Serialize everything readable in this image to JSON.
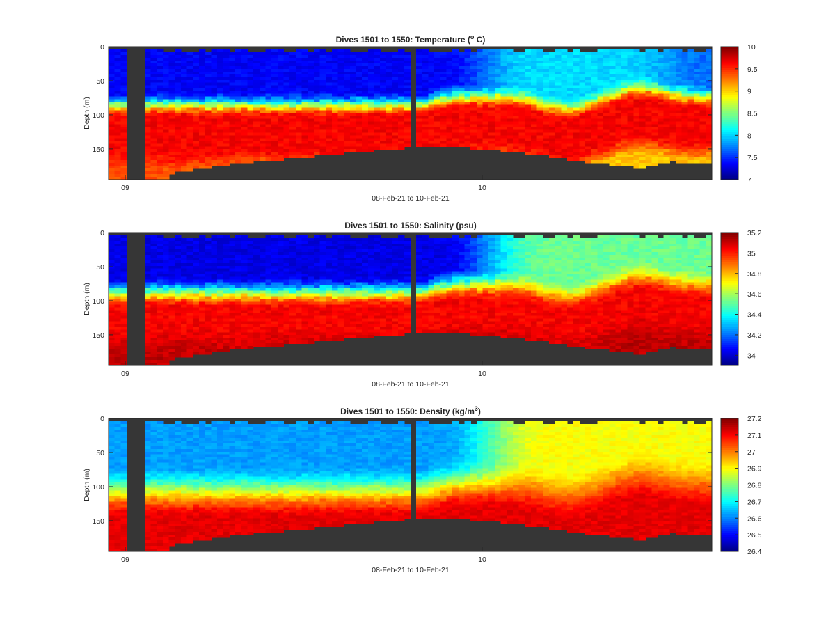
{
  "colormap_name": "jet",
  "colors": {
    "land": "#363636",
    "axis": "#262626",
    "background": "#ffffff"
  },
  "chart_data": [
    {
      "type": "heatmap",
      "title": "Dives 1501 to 1550: Temperature (",
      "title_sup": "o",
      "title_end": " C)",
      "ylabel": "Depth (m)",
      "xlabel": "08-Feb-21 to 10-Feb-21",
      "x_ticks": [
        "09",
        "10"
      ],
      "y_ticks": [
        "0",
        "50",
        "100",
        "150"
      ],
      "ylim": [
        0,
        195
      ],
      "y_reversed": true,
      "grid": false,
      "colorbar": {
        "clim": [
          7,
          10
        ],
        "ticks": [
          "7",
          "7.5",
          "8",
          "8.5",
          "9",
          "9.5",
          "10"
        ]
      }
    },
    {
      "type": "heatmap",
      "title": "Dives 1501 to 1550: Salinity (psu)",
      "title_sup": "",
      "title_end": "",
      "ylabel": "Depth (m)",
      "xlabel": "08-Feb-21 to 10-Feb-21",
      "x_ticks": [
        "09",
        "10"
      ],
      "y_ticks": [
        "0",
        "50",
        "100",
        "150"
      ],
      "ylim": [
        0,
        195
      ],
      "y_reversed": true,
      "grid": false,
      "colorbar": {
        "clim": [
          33.9,
          35.2
        ],
        "ticks": [
          "34",
          "34.2",
          "34.4",
          "34.6",
          "34.8",
          "35",
          "35.2"
        ]
      }
    },
    {
      "type": "heatmap",
      "title": "Dives 1501 to 1550: Density (kg/m",
      "title_sup": "3",
      "title_end": ")",
      "ylabel": "Depth (m)",
      "xlabel": "08-Feb-21 to 10-Feb-21",
      "x_ticks": [
        "09",
        "10"
      ],
      "y_ticks": [
        "0",
        "50",
        "100",
        "150"
      ],
      "ylim": [
        0,
        195
      ],
      "y_reversed": true,
      "grid": false,
      "colorbar": {
        "clim": [
          26.4,
          27.2
        ],
        "ticks": [
          "26.4",
          "26.5",
          "26.6",
          "26.7",
          "26.8",
          "26.9",
          "27",
          "27.1",
          "27.2"
        ]
      }
    }
  ]
}
